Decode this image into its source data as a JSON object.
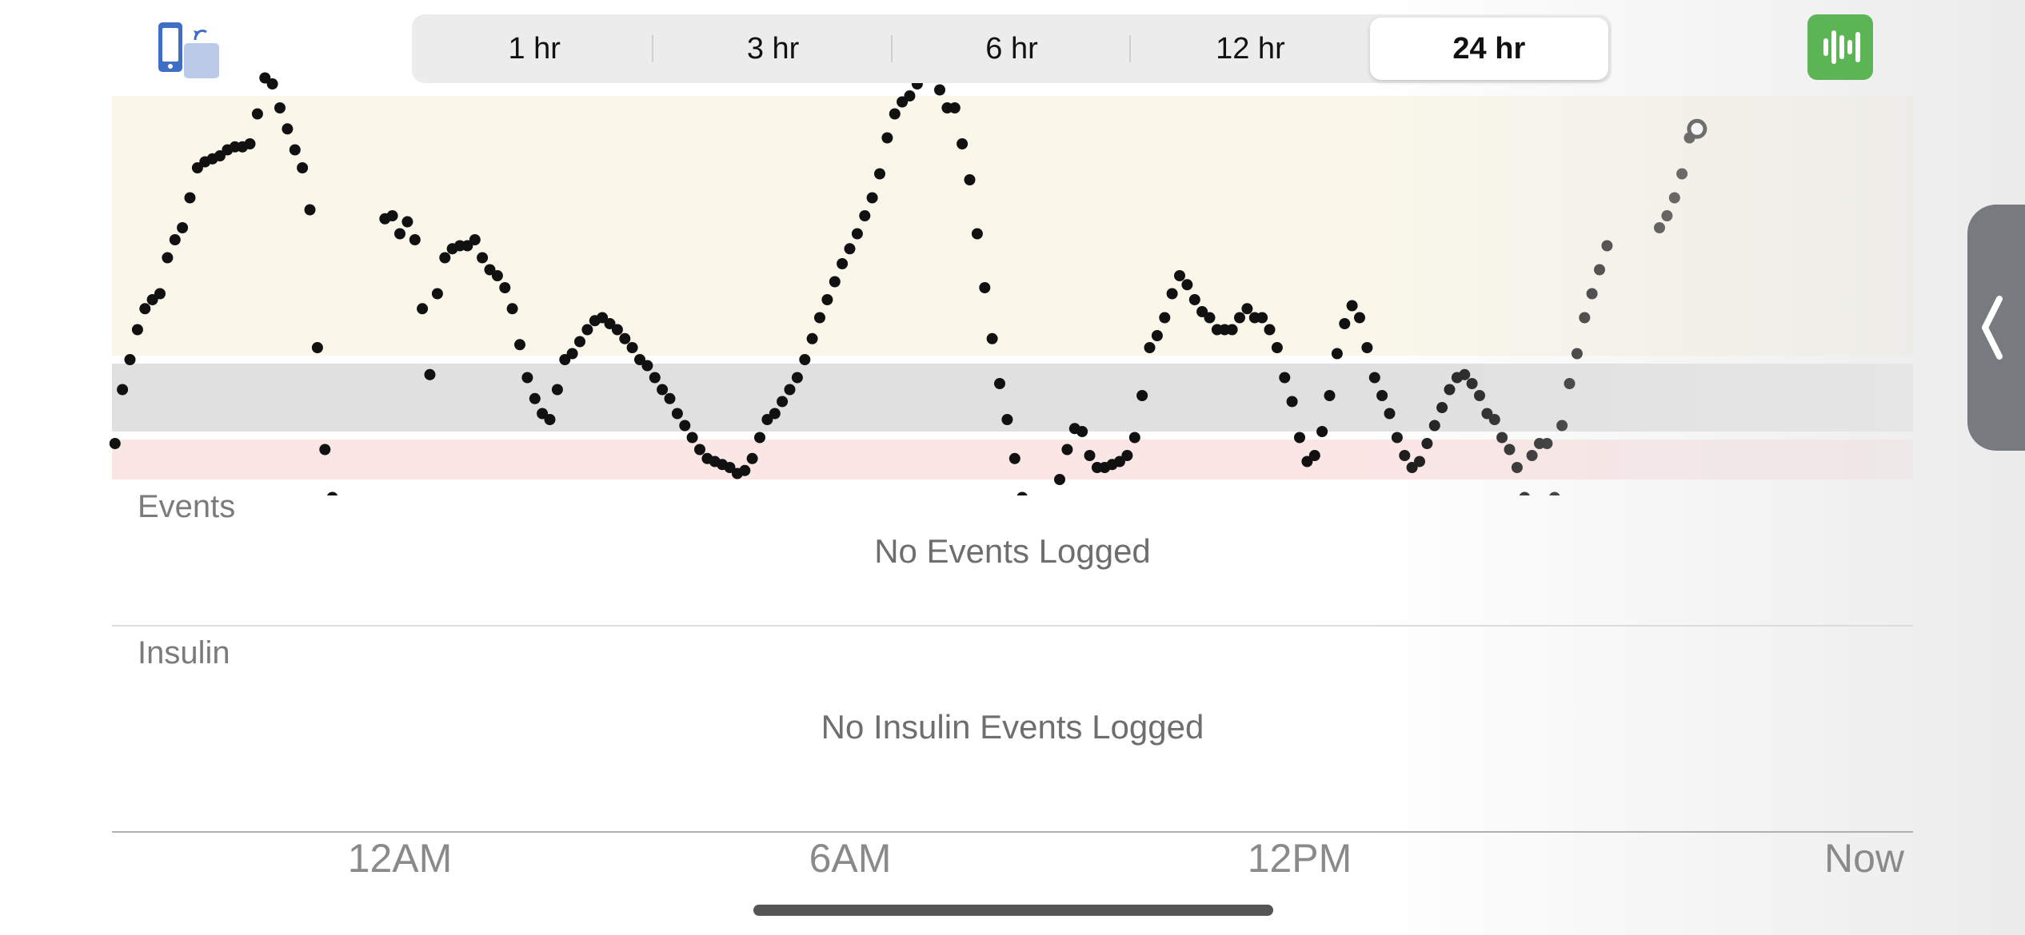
{
  "toolbar": {
    "rotate_icon": "rotate-device-icon",
    "stats_icon": "statistics-icon",
    "stats_color": "#5cb554"
  },
  "time_ranges": {
    "options": [
      "1 hr",
      "3 hr",
      "6 hr",
      "12 hr",
      "24 hr"
    ],
    "selected": "24 hr"
  },
  "events": {
    "label": "Events",
    "empty": "No Events Logged"
  },
  "insulin": {
    "label": "Insulin",
    "empty": "No Insulin Events Logged"
  },
  "side_tab_icon": "chevron-left-icon",
  "colors": {
    "high_band": "#faf7ea",
    "target_band": "#e0e0e0",
    "low_band": "#fbe6e6",
    "point": "#111111"
  },
  "chart_data": {
    "type": "scatter",
    "x_ticks": [
      "12AM",
      "6AM",
      "12PM",
      "Now"
    ],
    "series": [
      {
        "values": [
          [
            -3.8,
            180
          ],
          [
            -3.7,
            198
          ],
          [
            -3.6,
            208
          ],
          [
            -3.5,
            218
          ],
          [
            -3.4,
            225
          ],
          [
            -3.3,
            228
          ],
          [
            -3.2,
            230
          ],
          [
            -3.1,
            242
          ],
          [
            -3.0,
            248
          ],
          [
            -2.9,
            252
          ],
          [
            -2.8,
            262
          ],
          [
            -2.7,
            272
          ],
          [
            -2.6,
            274
          ],
          [
            -2.5,
            275
          ],
          [
            -2.4,
            276
          ],
          [
            -2.3,
            278
          ],
          [
            -2.2,
            279
          ],
          [
            -2.1,
            279
          ],
          [
            -2.0,
            280
          ],
          [
            -1.9,
            290
          ],
          [
            -1.8,
            302
          ],
          [
            -1.7,
            300
          ],
          [
            -1.6,
            292
          ],
          [
            -1.5,
            285
          ],
          [
            -1.4,
            278
          ],
          [
            -1.3,
            272
          ],
          [
            -1.2,
            258
          ],
          [
            -1.1,
            212
          ],
          [
            -1.0,
            178
          ],
          [
            -0.9,
            162
          ],
          [
            -0.2,
            255
          ],
          [
            -0.1,
            256
          ],
          [
            0.0,
            250
          ],
          [
            0.1,
            254
          ],
          [
            0.2,
            248
          ],
          [
            0.3,
            225
          ],
          [
            0.4,
            203
          ],
          [
            0.5,
            230
          ],
          [
            0.6,
            242
          ],
          [
            0.7,
            245
          ],
          [
            0.8,
            246
          ],
          [
            0.9,
            246
          ],
          [
            1.0,
            248
          ],
          [
            1.1,
            242
          ],
          [
            1.2,
            238
          ],
          [
            1.3,
            236
          ],
          [
            1.4,
            232
          ],
          [
            1.5,
            225
          ],
          [
            1.6,
            213
          ],
          [
            1.7,
            202
          ],
          [
            1.8,
            195
          ],
          [
            1.9,
            190
          ],
          [
            2.0,
            188
          ],
          [
            2.1,
            198
          ],
          [
            2.2,
            208
          ],
          [
            2.3,
            210
          ],
          [
            2.4,
            214
          ],
          [
            2.5,
            218
          ],
          [
            2.6,
            221
          ],
          [
            2.7,
            222
          ],
          [
            2.8,
            220
          ],
          [
            2.9,
            218
          ],
          [
            3.0,
            215
          ],
          [
            3.1,
            212
          ],
          [
            3.2,
            208
          ],
          [
            3.3,
            206
          ],
          [
            3.4,
            202
          ],
          [
            3.5,
            198
          ],
          [
            3.6,
            195
          ],
          [
            3.7,
            190
          ],
          [
            3.8,
            186
          ],
          [
            3.9,
            182
          ],
          [
            4.0,
            178
          ],
          [
            4.1,
            175
          ],
          [
            4.2,
            174
          ],
          [
            4.3,
            173
          ],
          [
            4.4,
            172
          ],
          [
            4.5,
            170
          ],
          [
            4.6,
            171
          ],
          [
            4.7,
            175
          ],
          [
            4.8,
            182
          ],
          [
            4.9,
            188
          ],
          [
            5.0,
            190
          ],
          [
            5.1,
            194
          ],
          [
            5.2,
            198
          ],
          [
            5.3,
            202
          ],
          [
            5.4,
            208
          ],
          [
            5.5,
            215
          ],
          [
            5.6,
            222
          ],
          [
            5.7,
            228
          ],
          [
            5.8,
            234
          ],
          [
            5.9,
            240
          ],
          [
            6.0,
            245
          ],
          [
            6.1,
            250
          ],
          [
            6.2,
            256
          ],
          [
            6.3,
            262
          ],
          [
            6.4,
            270
          ],
          [
            6.5,
            282
          ],
          [
            6.6,
            290
          ],
          [
            6.7,
            294
          ],
          [
            6.8,
            296
          ],
          [
            6.9,
            300
          ],
          [
            7.0,
            303
          ],
          [
            7.1,
            306
          ],
          [
            7.2,
            298
          ],
          [
            7.3,
            292
          ],
          [
            7.4,
            292
          ],
          [
            7.5,
            280
          ],
          [
            7.6,
            268
          ],
          [
            7.7,
            250
          ],
          [
            7.8,
            232
          ],
          [
            7.9,
            215
          ],
          [
            8.0,
            200
          ],
          [
            8.1,
            188
          ],
          [
            8.2,
            175
          ],
          [
            8.3,
            162
          ],
          [
            8.4,
            150
          ],
          [
            8.5,
            145
          ],
          [
            8.6,
            148
          ],
          [
            8.7,
            156
          ],
          [
            8.8,
            168
          ],
          [
            8.9,
            178
          ],
          [
            9.0,
            185
          ],
          [
            9.1,
            184
          ],
          [
            9.2,
            176
          ],
          [
            9.3,
            172
          ],
          [
            9.4,
            172
          ],
          [
            9.5,
            173
          ],
          [
            9.6,
            174
          ],
          [
            9.7,
            176
          ],
          [
            9.8,
            182
          ],
          [
            9.9,
            196
          ],
          [
            10.0,
            212
          ],
          [
            10.1,
            216
          ],
          [
            10.2,
            222
          ],
          [
            10.3,
            230
          ],
          [
            10.4,
            236
          ],
          [
            10.5,
            233
          ],
          [
            10.6,
            228
          ],
          [
            10.7,
            224
          ],
          [
            10.8,
            222
          ],
          [
            10.9,
            218
          ],
          [
            11.0,
            218
          ],
          [
            11.1,
            218
          ],
          [
            11.2,
            222
          ],
          [
            11.3,
            225
          ],
          [
            11.4,
            222
          ],
          [
            11.5,
            222
          ],
          [
            11.6,
            218
          ],
          [
            11.7,
            212
          ],
          [
            11.8,
            202
          ],
          [
            11.9,
            194
          ],
          [
            12.0,
            182
          ],
          [
            12.1,
            174
          ],
          [
            12.2,
            176
          ],
          [
            12.3,
            184
          ],
          [
            12.4,
            196
          ],
          [
            12.5,
            210
          ],
          [
            12.6,
            220
          ],
          [
            12.7,
            226
          ],
          [
            12.8,
            222
          ],
          [
            12.9,
            212
          ],
          [
            13.0,
            202
          ],
          [
            13.1,
            196
          ],
          [
            13.2,
            190
          ],
          [
            13.3,
            182
          ],
          [
            13.4,
            176
          ],
          [
            13.5,
            172
          ],
          [
            13.6,
            174
          ],
          [
            13.7,
            180
          ],
          [
            13.8,
            186
          ],
          [
            13.9,
            192
          ],
          [
            14.0,
            198
          ],
          [
            14.1,
            202
          ],
          [
            14.2,
            203
          ],
          [
            14.3,
            200
          ],
          [
            14.4,
            196
          ],
          [
            14.5,
            190
          ],
          [
            14.6,
            188
          ],
          [
            14.7,
            182
          ],
          [
            14.8,
            178
          ],
          [
            14.9,
            172
          ],
          [
            15.0,
            162
          ],
          [
            15.1,
            176
          ],
          [
            15.2,
            180
          ],
          [
            15.3,
            180
          ],
          [
            15.4,
            162
          ],
          [
            15.5,
            186
          ],
          [
            15.6,
            200
          ],
          [
            15.7,
            210
          ],
          [
            15.8,
            222
          ],
          [
            15.9,
            230
          ],
          [
            16.0,
            238
          ],
          [
            16.1,
            246
          ],
          [
            16.8,
            252
          ],
          [
            16.9,
            256
          ],
          [
            17.0,
            262
          ],
          [
            17.1,
            270
          ],
          [
            17.2,
            282
          ],
          [
            17.3,
            285
          ]
        ]
      }
    ]
  }
}
